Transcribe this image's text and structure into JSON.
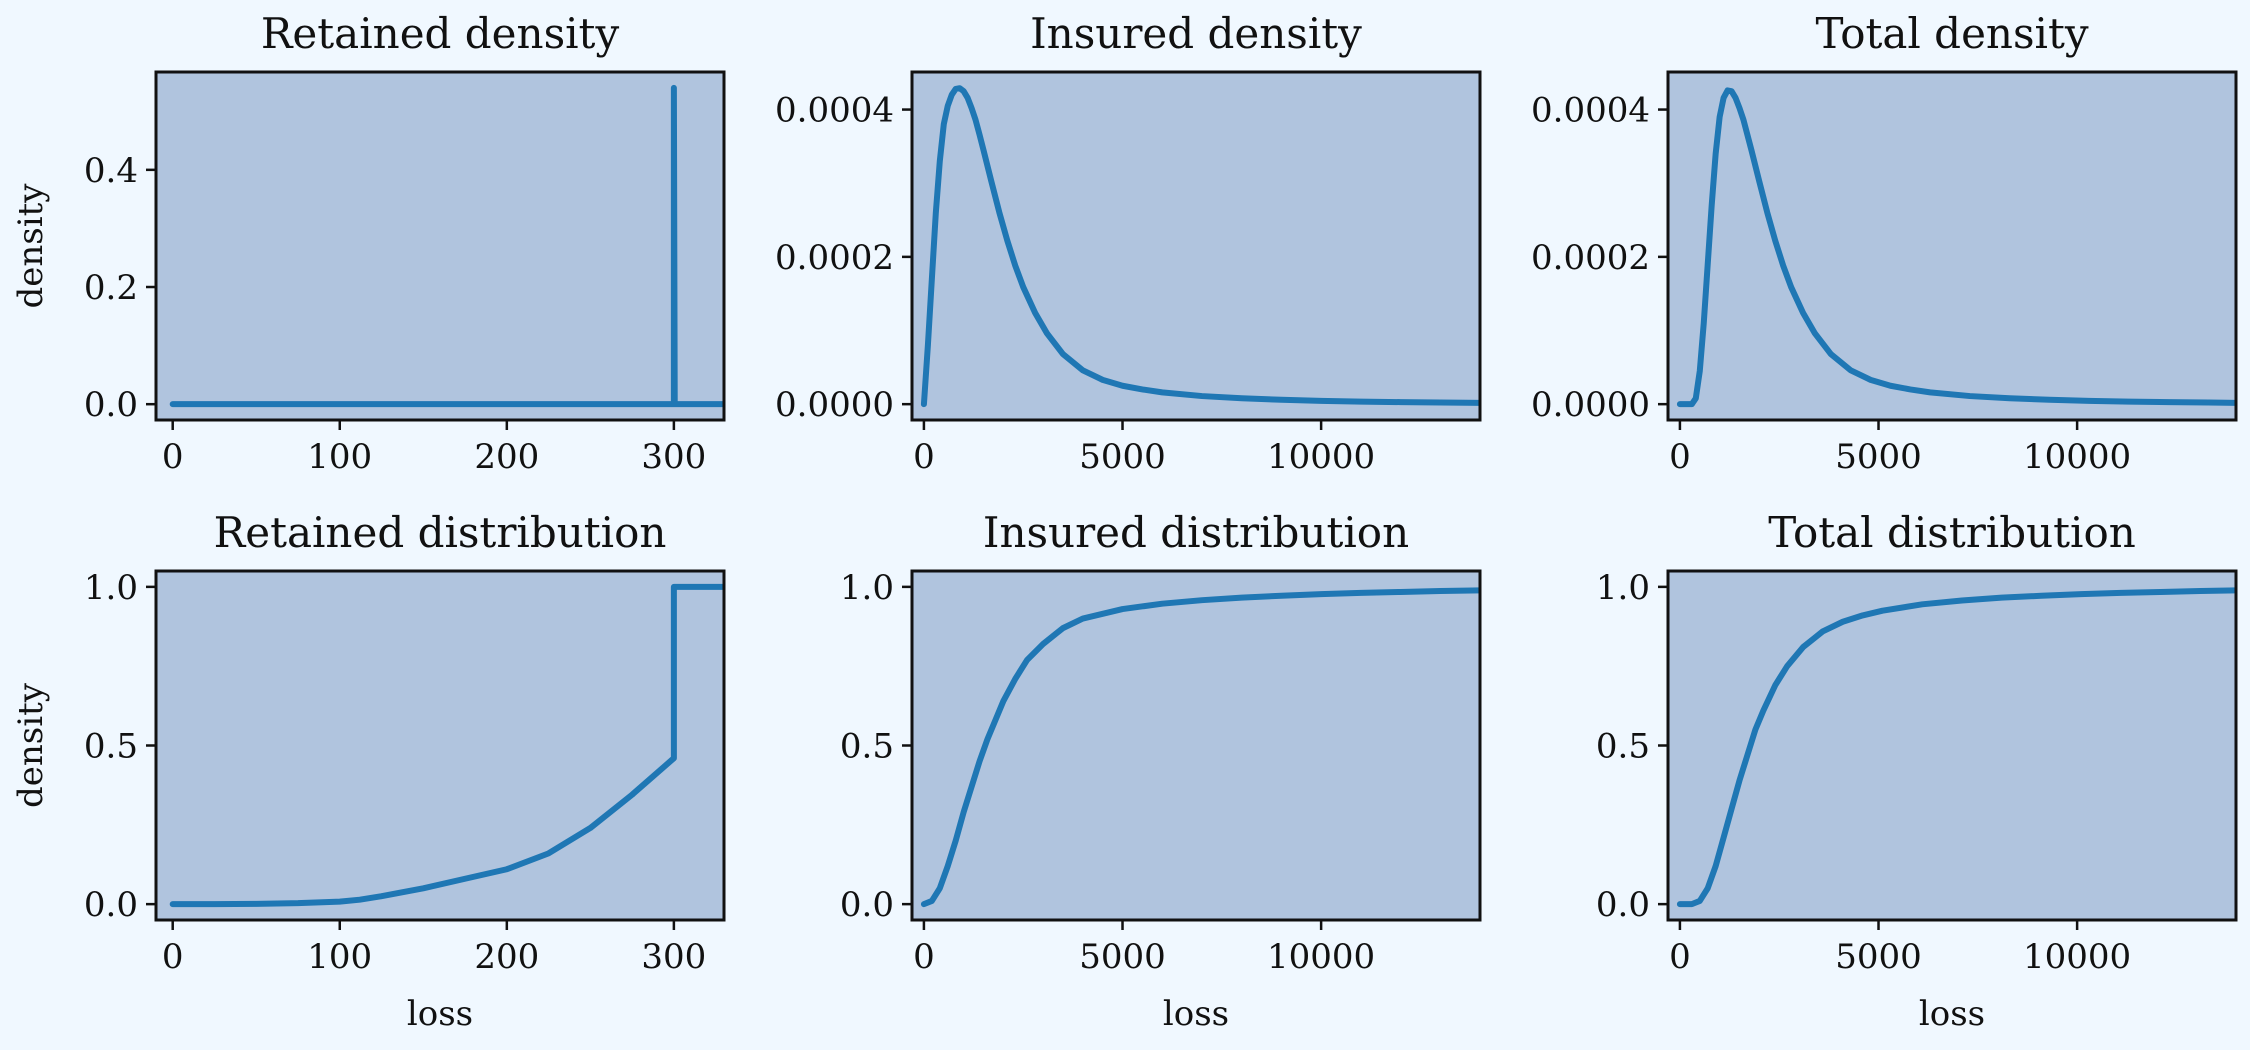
{
  "chart_data": [
    {
      "type": "line",
      "title": "Retained density",
      "xlabel": "",
      "ylabel": "density",
      "xlim": [
        -10,
        330
      ],
      "ylim": [
        -0.027,
        0.567
      ],
      "xticks": [
        0,
        100,
        200,
        300
      ],
      "xtick_labels": [
        "0",
        "100",
        "200",
        "300"
      ],
      "yticks": [
        0,
        0.2,
        0.4
      ],
      "ytick_labels": [
        "0.0",
        "0.2",
        "0.4"
      ],
      "series": [
        {
          "x": [
            0,
            100,
            200,
            299.5,
            300,
            300,
            300.5,
            330
          ],
          "y": [
            0,
            0,
            0,
            0,
            0,
            0.54,
            0,
            0
          ]
        }
      ]
    },
    {
      "type": "line",
      "title": "Insured density",
      "xlabel": "",
      "ylabel": "",
      "xlim": [
        -300,
        14000
      ],
      "ylim": [
        -2.15e-05,
        0.000451
      ],
      "xticks": [
        0,
        5000,
        10000
      ],
      "xtick_labels": [
        "0",
        "5000",
        "10000"
      ],
      "yticks": [
        0,
        0.0002,
        0.0004
      ],
      "ytick_labels": [
        "0.0000",
        "0.0002",
        "0.0004"
      ],
      "series": [
        {
          "x": [
            0,
            100,
            200,
            300,
            400,
            500,
            600,
            700,
            800,
            900,
            1000,
            1100,
            1200,
            1300,
            1400,
            1500,
            1700,
            1900,
            2100,
            2300,
            2500,
            2800,
            3100,
            3500,
            4000,
            4500,
            5000,
            5500,
            6000,
            7000,
            8000,
            9000,
            10000,
            11000,
            12000,
            13000,
            14000
          ],
          "y": [
            0,
            8e-05,
            0.00017,
            0.00026,
            0.00033,
            0.00038,
            0.000405,
            0.00042,
            0.000428,
            0.000429,
            0.000425,
            0.000416,
            0.000402,
            0.000386,
            0.000366,
            0.000345,
            0.000302,
            0.00026,
            0.000222,
            0.000188,
            0.000159,
            0.000124,
            9.6e-05,
            6.8e-05,
            4.6e-05,
            3.3e-05,
            2.5e-05,
            2e-05,
            1.6e-05,
            1.1e-05,
            8e-06,
            6e-06,
            4.5e-06,
            3.5e-06,
            2.8e-06,
            2.2e-06,
            1.8e-06
          ]
        }
      ]
    },
    {
      "type": "line",
      "title": "Total density",
      "xlabel": "",
      "ylabel": "",
      "xlim": [
        -300,
        14000
      ],
      "ylim": [
        -2.15e-05,
        0.000451
      ],
      "xticks": [
        0,
        5000,
        10000
      ],
      "xtick_labels": [
        "0",
        "5000",
        "10000"
      ],
      "yticks": [
        0,
        0.0002,
        0.0004
      ],
      "ytick_labels": [
        "0.0000",
        "0.0002",
        "0.0004"
      ],
      "series": [
        {
          "x": [
            0,
            300,
            400,
            500,
            600,
            700,
            800,
            900,
            1000,
            1100,
            1200,
            1300,
            1400,
            1500,
            1600,
            1800,
            2000,
            2200,
            2400,
            2600,
            2800,
            3100,
            3400,
            3800,
            4300,
            4800,
            5300,
            5800,
            6300,
            7300,
            8300,
            9300,
            10300,
            11300,
            12300,
            13300,
            14000
          ],
          "y": [
            0,
            0,
            8e-06,
            4.5e-05,
            0.00011,
            0.00019,
            0.00027,
            0.00034,
            0.00039,
            0.000416,
            0.000426,
            0.000425,
            0.000416,
            0.000402,
            0.000386,
            0.000345,
            0.000302,
            0.00026,
            0.000222,
            0.000188,
            0.000159,
            0.000124,
            9.6e-05,
            6.8e-05,
            4.6e-05,
            3.3e-05,
            2.5e-05,
            2e-05,
            1.6e-05,
            1.1e-05,
            8e-06,
            6e-06,
            4.5e-06,
            3.5e-06,
            2.8e-06,
            2.2e-06,
            1.8e-06
          ]
        }
      ]
    },
    {
      "type": "line",
      "title": "Retained distribution",
      "xlabel": "loss",
      "ylabel": "density",
      "xlim": [
        -10,
        330
      ],
      "ylim": [
        -0.05,
        1.05
      ],
      "xticks": [
        0,
        100,
        200,
        300
      ],
      "xtick_labels": [
        "0",
        "100",
        "200",
        "300"
      ],
      "yticks": [
        0,
        0.5,
        1
      ],
      "ytick_labels": [
        "0.0",
        "0.5",
        "1.0"
      ],
      "series": [
        {
          "x": [
            0,
            25,
            50,
            75,
            100,
            112,
            125,
            150,
            175,
            200,
            225,
            250,
            275,
            300,
            300,
            330
          ],
          "y": [
            0,
            0,
            0.001,
            0.003,
            0.008,
            0.014,
            0.025,
            0.05,
            0.08,
            0.11,
            0.16,
            0.24,
            0.345,
            0.46,
            1,
            1
          ]
        }
      ]
    },
    {
      "type": "line",
      "title": "Insured distribution",
      "xlabel": "loss",
      "ylabel": "",
      "xlim": [
        -300,
        14000
      ],
      "ylim": [
        -0.05,
        1.05
      ],
      "xticks": [
        0,
        5000,
        10000
      ],
      "xtick_labels": [
        "0",
        "5000",
        "10000"
      ],
      "yticks": [
        0,
        0.5,
        1
      ],
      "ytick_labels": [
        "0.0",
        "0.5",
        "1.0"
      ],
      "series": [
        {
          "x": [
            0,
            200,
            400,
            600,
            800,
            1000,
            1200,
            1400,
            1600,
            1800,
            2000,
            2300,
            2600,
            3000,
            3500,
            4000,
            4500,
            5000,
            6000,
            7000,
            8000,
            9000,
            10000,
            11000,
            12000,
            13000,
            14000
          ],
          "y": [
            0,
            0.01,
            0.05,
            0.12,
            0.2,
            0.29,
            0.37,
            0.45,
            0.52,
            0.58,
            0.64,
            0.71,
            0.77,
            0.82,
            0.87,
            0.9,
            0.915,
            0.93,
            0.947,
            0.958,
            0.966,
            0.972,
            0.977,
            0.981,
            0.984,
            0.987,
            0.989
          ]
        }
      ]
    },
    {
      "type": "line",
      "title": "Total distribution",
      "xlabel": "loss",
      "ylabel": "",
      "xlim": [
        -300,
        14000
      ],
      "ylim": [
        -0.05,
        1.05
      ],
      "xticks": [
        0,
        5000,
        10000
      ],
      "xtick_labels": [
        "0",
        "5000",
        "10000"
      ],
      "yticks": [
        0,
        0.5,
        1
      ],
      "ytick_labels": [
        "0.0",
        "0.5",
        "1.0"
      ],
      "series": [
        {
          "x": [
            0,
            300,
            500,
            700,
            900,
            1100,
            1300,
            1500,
            1700,
            1900,
            2100,
            2400,
            2700,
            3100,
            3600,
            4100,
            4600,
            5100,
            6100,
            7100,
            8100,
            9100,
            10100,
            11100,
            12100,
            13100,
            14000
          ],
          "y": [
            0,
            0,
            0.01,
            0.05,
            0.12,
            0.21,
            0.3,
            0.39,
            0.47,
            0.55,
            0.61,
            0.69,
            0.75,
            0.81,
            0.86,
            0.89,
            0.91,
            0.925,
            0.945,
            0.957,
            0.966,
            0.972,
            0.977,
            0.981,
            0.984,
            0.987,
            0.989
          ]
        }
      ]
    }
  ]
}
